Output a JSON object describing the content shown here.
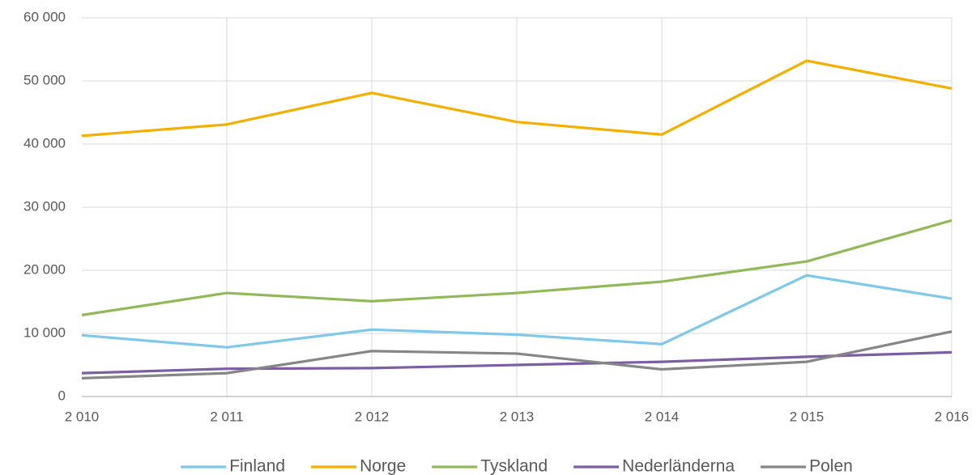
{
  "chart_data": {
    "type": "line",
    "categories": [
      "2 010",
      "2 011",
      "2 012",
      "2 013",
      "2 014",
      "2 015",
      "2 016"
    ],
    "series": [
      {
        "name": "Finland",
        "color": "#7ec8e9",
        "values": [
          9700,
          7800,
          10600,
          9800,
          8300,
          19200,
          15500
        ]
      },
      {
        "name": "Norge",
        "color": "#f4b000",
        "values": [
          41300,
          43100,
          48100,
          43500,
          41500,
          53200,
          48800
        ]
      },
      {
        "name": "Tyskland",
        "color": "#92b957",
        "values": [
          12900,
          16400,
          15100,
          16400,
          18200,
          21400,
          27900
        ]
      },
      {
        "name": "Nederländerna",
        "color": "#7b5ea3",
        "values": [
          3700,
          4400,
          4500,
          5000,
          5500,
          6300,
          7000
        ]
      },
      {
        "name": "Polen",
        "color": "#868686",
        "values": [
          2900,
          3700,
          7200,
          6800,
          4300,
          5500,
          10300
        ]
      }
    ],
    "ylim": [
      0,
      60000
    ],
    "yticks": [
      0,
      {
        "value": 10000,
        "label": "10 000"
      },
      {
        "value": 20000,
        "label": "20 000"
      },
      {
        "value": 30000,
        "label": "30 000"
      },
      {
        "value": 40000,
        "label": "40 000"
      },
      {
        "value": 50000,
        "label": "50 000"
      },
      {
        "value": 60000,
        "label": "60 000"
      }
    ],
    "grid": true,
    "legend": "bottom"
  }
}
